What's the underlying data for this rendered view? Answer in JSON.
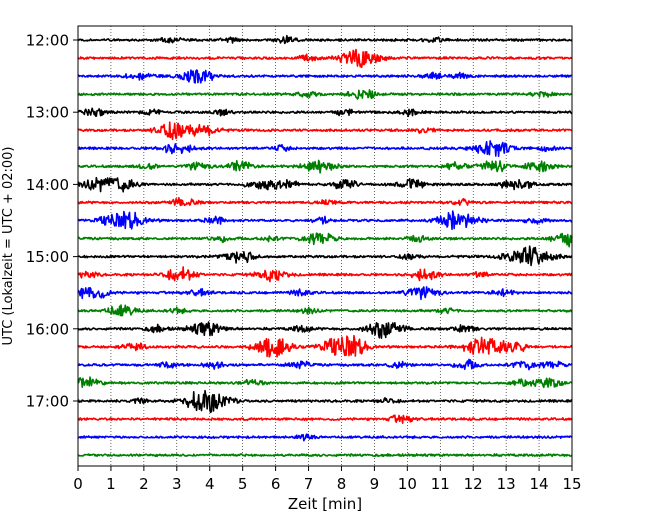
{
  "chart_data": {
    "type": "line",
    "xlabel": "Zeit  [min]",
    "ylabel": "UTC (Lokalzeit = UTC + 02:00)",
    "xlim": [
      0,
      15
    ],
    "x_ticks": [
      0,
      1,
      2,
      3,
      4,
      5,
      6,
      7,
      8,
      9,
      10,
      11,
      12,
      13,
      14,
      15
    ],
    "x_tick_labels": [
      "0",
      "1",
      "2",
      "3",
      "4",
      "5",
      "6",
      "7",
      "8",
      "9",
      "10",
      "11",
      "12",
      "13",
      "14",
      "15"
    ],
    "y_tick_labels": [
      "12:00",
      "13:00",
      "14:00",
      "15:00",
      "16:00",
      "17:00"
    ],
    "y_tick_rows": [
      0,
      4,
      8,
      12,
      16,
      20
    ],
    "row_count": 24,
    "row_interval_min": 15,
    "grid": "x-dotted",
    "color_cycle": [
      "#000000",
      "#ff0000",
      "#0000ff",
      "#008000"
    ],
    "traces": [
      {
        "start": "12:00",
        "color": "#000000",
        "bursts": [
          [
            2.8,
            0.5
          ],
          [
            4.6,
            0.4
          ],
          [
            6.3,
            0.5
          ],
          [
            10.8,
            0.4
          ]
        ]
      },
      {
        "start": "12:15",
        "color": "#ff0000",
        "bursts": [
          [
            7.0,
            0.5
          ],
          [
            8.4,
            1.2
          ],
          [
            8.9,
            0.8
          ]
        ]
      },
      {
        "start": "12:30",
        "color": "#0000ff",
        "bursts": [
          [
            1.8,
            0.7
          ],
          [
            3.6,
            1.3
          ],
          [
            10.8,
            0.5
          ],
          [
            11.6,
            0.4
          ]
        ]
      },
      {
        "start": "12:45",
        "color": "#008000",
        "bursts": [
          [
            6.9,
            0.5
          ],
          [
            8.6,
            0.9
          ],
          [
            14.1,
            0.4
          ]
        ]
      },
      {
        "start": "13:00",
        "color": "#000000",
        "bursts": [
          [
            0.5,
            0.7
          ],
          [
            2.2,
            0.4
          ],
          [
            4.4,
            0.4
          ],
          [
            8.1,
            0.5
          ],
          [
            10.1,
            0.6
          ]
        ]
      },
      {
        "start": "13:15",
        "color": "#ff0000",
        "bursts": [
          [
            2.7,
            0.7
          ],
          [
            3.1,
            1.3
          ],
          [
            3.9,
            0.8
          ],
          [
            10.5,
            0.4
          ]
        ]
      },
      {
        "start": "13:30",
        "color": "#0000ff",
        "bursts": [
          [
            3.0,
            1.0
          ],
          [
            6.2,
            0.4
          ],
          [
            12.6,
            1.3
          ],
          [
            14.2,
            0.4
          ]
        ]
      },
      {
        "start": "13:45",
        "color": "#008000",
        "bursts": [
          [
            2.1,
            0.5
          ],
          [
            3.6,
            0.7
          ],
          [
            4.9,
            0.8
          ],
          [
            7.3,
            1.1
          ],
          [
            11.5,
            0.6
          ],
          [
            12.6,
            1.0
          ],
          [
            14.0,
            0.9
          ]
        ]
      },
      {
        "start": "14:00",
        "color": "#000000",
        "bursts": [
          [
            0.5,
            0.8
          ],
          [
            1.2,
            1.3
          ],
          [
            5.6,
            1.0
          ],
          [
            6.4,
            0.7
          ],
          [
            8.1,
            0.8
          ],
          [
            10.1,
            0.8
          ],
          [
            13.3,
            1.0
          ]
        ]
      },
      {
        "start": "14:15",
        "color": "#ff0000",
        "bursts": [
          [
            3.2,
            0.7
          ],
          [
            7.6,
            0.4
          ],
          [
            11.7,
            0.4
          ]
        ]
      },
      {
        "start": "14:30",
        "color": "#0000ff",
        "bursts": [
          [
            0.9,
            0.6
          ],
          [
            1.5,
            1.4
          ],
          [
            4.2,
            0.6
          ],
          [
            7.4,
            0.5
          ],
          [
            11.5,
            1.5
          ],
          [
            13.9,
            0.5
          ]
        ]
      },
      {
        "start": "14:45",
        "color": "#008000",
        "bursts": [
          [
            4.3,
            0.5
          ],
          [
            5.8,
            0.4
          ],
          [
            7.3,
            1.1
          ],
          [
            10.3,
            0.5
          ],
          [
            14.9,
            1.2
          ]
        ]
      },
      {
        "start": "15:00",
        "color": "#000000",
        "bursts": [
          [
            4.9,
            1.1
          ],
          [
            10.1,
            0.5
          ],
          [
            13.7,
            1.8
          ]
        ]
      },
      {
        "start": "15:15",
        "color": "#ff0000",
        "bursts": [
          [
            0.3,
            0.5
          ],
          [
            3.1,
            1.1
          ],
          [
            5.9,
            1.0
          ],
          [
            10.5,
            0.9
          ],
          [
            12.2,
            0.4
          ]
        ]
      },
      {
        "start": "15:30",
        "color": "#0000ff",
        "bursts": [
          [
            0.4,
            1.2
          ],
          [
            3.7,
            0.5
          ],
          [
            6.8,
            0.5
          ],
          [
            10.4,
            1.2
          ],
          [
            12.9,
            0.5
          ]
        ]
      },
      {
        "start": "15:45",
        "color": "#008000",
        "bursts": [
          [
            1.3,
            1.0
          ],
          [
            3.0,
            0.4
          ],
          [
            7.0,
            0.4
          ],
          [
            11.2,
            0.4
          ]
        ]
      },
      {
        "start": "16:00",
        "color": "#000000",
        "bursts": [
          [
            2.4,
            0.5
          ],
          [
            3.9,
            1.2
          ],
          [
            6.8,
            0.5
          ],
          [
            9.3,
            1.4
          ],
          [
            11.7,
            0.6
          ]
        ]
      },
      {
        "start": "16:15",
        "color": "#ff0000",
        "bursts": [
          [
            1.7,
            0.6
          ],
          [
            5.8,
            1.2
          ],
          [
            6.1,
            0.8
          ],
          [
            7.7,
            0.9
          ],
          [
            8.1,
            1.1
          ],
          [
            8.4,
            1.0
          ],
          [
            12.3,
            1.6
          ],
          [
            13.2,
            1.0
          ]
        ]
      },
      {
        "start": "16:30",
        "color": "#0000ff",
        "bursts": [
          [
            2.7,
            0.5
          ],
          [
            4.1,
            0.5
          ],
          [
            6.7,
            0.6
          ],
          [
            9.7,
            0.5
          ],
          [
            11.8,
            0.7
          ],
          [
            13.6,
            0.7
          ],
          [
            14.4,
            0.6
          ]
        ]
      },
      {
        "start": "16:45",
        "color": "#008000",
        "bursts": [
          [
            0.2,
            1.0
          ],
          [
            5.3,
            0.5
          ],
          [
            13.5,
            0.6
          ],
          [
            14.3,
            0.8
          ]
        ]
      },
      {
        "start": "17:00",
        "color": "#000000",
        "bursts": [
          [
            1.9,
            0.4
          ],
          [
            3.9,
            1.8
          ],
          [
            9.4,
            0.4
          ]
        ]
      },
      {
        "start": "17:15",
        "color": "#ff0000",
        "bursts": [
          [
            9.8,
            0.6
          ]
        ]
      },
      {
        "start": "17:30",
        "color": "#0000ff",
        "bursts": [
          [
            6.9,
            0.4
          ]
        ]
      },
      {
        "start": "17:45",
        "color": "#008000",
        "bursts": []
      }
    ]
  }
}
